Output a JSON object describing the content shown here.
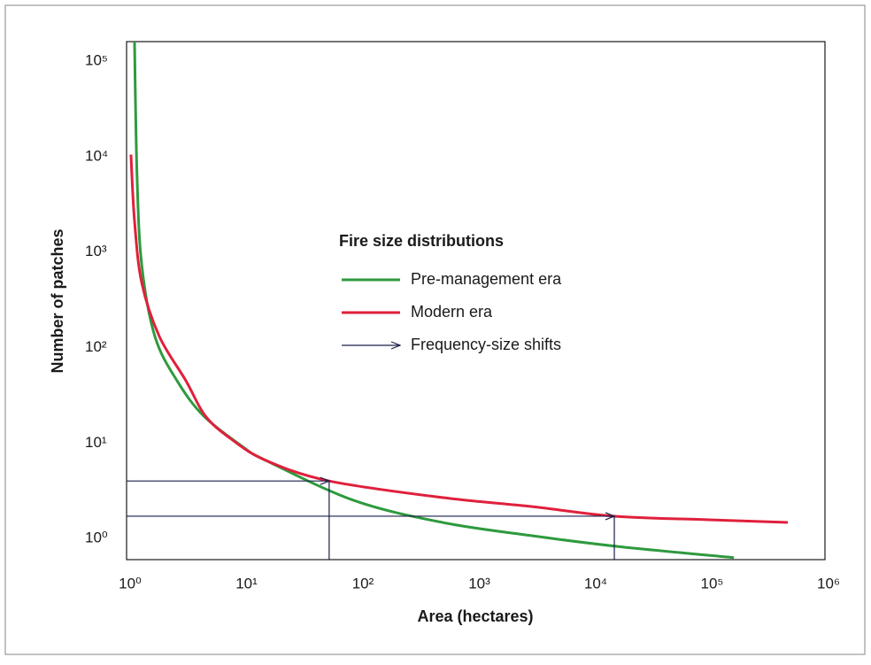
{
  "chart_data": {
    "type": "line",
    "xlabel": "Area (hectares)",
    "ylabel": "Number of patches",
    "xscale": "log",
    "yscale": "log",
    "xlim": [
      1,
      1000000
    ],
    "ylim": [
      0.6,
      160000
    ],
    "xticks": [
      {
        "value": 1,
        "label": "10⁰"
      },
      {
        "value": 10,
        "label": "10¹"
      },
      {
        "value": 100,
        "label": "10²"
      },
      {
        "value": 1000,
        "label": "10³"
      },
      {
        "value": 10000,
        "label": "10⁴"
      },
      {
        "value": 100000,
        "label": "10⁵"
      },
      {
        "value": 1000000,
        "label": "10⁶"
      }
    ],
    "yticks": [
      {
        "value": 1,
        "label": "10⁰"
      },
      {
        "value": 10,
        "label": "10¹"
      },
      {
        "value": 100,
        "label": "10²"
      },
      {
        "value": 1000,
        "label": "10³"
      },
      {
        "value": 10000,
        "label": "10⁴"
      },
      {
        "value": 100000,
        "label": "10⁵"
      }
    ],
    "legend_title": "Fire size distributions",
    "series": [
      {
        "name": "Pre-management era",
        "color": "#2e9a3e",
        "x": [
          1.17,
          1.23,
          1.35,
          1.75,
          2.71,
          4.59,
          10,
          15.6,
          90,
          519,
          2990,
          17200,
          165000
        ],
        "values": [
          160000,
          6200,
          730,
          131,
          45,
          19.2,
          9.1,
          6.6,
          2.5,
          1.47,
          1.07,
          0.82,
          0.63
        ]
      },
      {
        "name": "Modern era",
        "color": "#e0203c",
        "x": [
          1.09,
          1.17,
          1.35,
          1.91,
          3.23,
          4.75,
          7.76,
          15.6,
          55,
          519,
          2990,
          15500,
          100000,
          479000
        ],
        "values": [
          10500,
          2120,
          475,
          131,
          45,
          19.2,
          11.2,
          6.6,
          4.0,
          2.68,
          2.16,
          1.71,
          1.57,
          1.47
        ]
      }
    ],
    "shifts": {
      "name": "Frequency-size shifts",
      "color": "#1b1f4b",
      "x": [
        55,
        15500
      ],
      "values": [
        4.0,
        1.71
      ]
    }
  }
}
